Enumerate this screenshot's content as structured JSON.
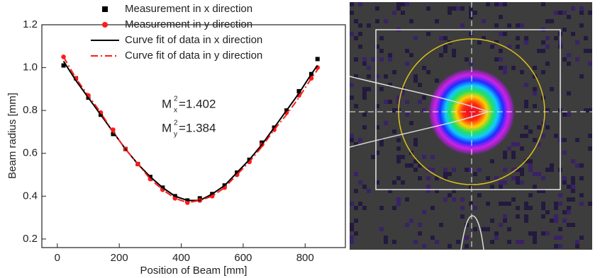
{
  "chart_data": {
    "type": "scatter-fit",
    "x_label": "Position of Beam  [mm]",
    "y_label": "Beam radius  [mm]",
    "x": [
      20,
      60,
      100,
      140,
      180,
      220,
      260,
      300,
      340,
      380,
      420,
      460,
      500,
      540,
      580,
      620,
      660,
      700,
      740,
      780,
      820,
      840
    ],
    "series": [
      {
        "name": "Measurement in x direction",
        "color": "#000000",
        "mode": "square",
        "values": [
          1.01,
          0.95,
          0.86,
          0.78,
          0.69,
          0.62,
          0.55,
          0.49,
          0.44,
          0.4,
          0.38,
          0.39,
          0.41,
          0.45,
          0.51,
          0.57,
          0.65,
          0.72,
          0.8,
          0.89,
          0.97,
          1.04
        ]
      },
      {
        "name": "Measurement in y direction",
        "color": "#ff1a1a",
        "mode": "circle",
        "values": [
          1.05,
          0.95,
          0.87,
          0.79,
          0.71,
          0.62,
          0.55,
          0.48,
          0.43,
          0.39,
          0.37,
          0.38,
          0.4,
          0.44,
          0.5,
          0.56,
          0.64,
          0.71,
          0.79,
          0.87,
          0.95,
          1.0
        ]
      },
      {
        "name": "Curve fit of data in x direction",
        "color": "#000000",
        "mode": "line",
        "values": [
          1.03,
          0.94,
          0.86,
          0.78,
          0.7,
          0.62,
          0.55,
          0.49,
          0.44,
          0.4,
          0.38,
          0.38,
          0.41,
          0.45,
          0.51,
          0.57,
          0.64,
          0.72,
          0.8,
          0.88,
          0.97,
          1.01
        ]
      },
      {
        "name": "Curve fit of data in y direction",
        "color": "#ff1a1a",
        "mode": "dashdot",
        "values": [
          1.05,
          0.95,
          0.87,
          0.79,
          0.7,
          0.62,
          0.55,
          0.48,
          0.43,
          0.39,
          0.37,
          0.38,
          0.4,
          0.44,
          0.5,
          0.56,
          0.63,
          0.71,
          0.78,
          0.86,
          0.95,
          0.99
        ]
      }
    ],
    "xlim": [
      -50,
      930
    ],
    "xticks": [
      0,
      200,
      400,
      600,
      800
    ],
    "ylim": [
      0.16,
      1.2
    ],
    "yticks": [
      0.2,
      0.4,
      0.6,
      0.8,
      {
        "value": 1.0,
        "label": "1.0"
      },
      1.2
    ],
    "legend": "top",
    "annotations": [
      {
        "base": "M",
        "sup": "2",
        "sub": "x",
        "text": "=1.402"
      },
      {
        "base": "M",
        "sup": "2",
        "sub": "y",
        "text": "=1.384"
      }
    ]
  }
}
